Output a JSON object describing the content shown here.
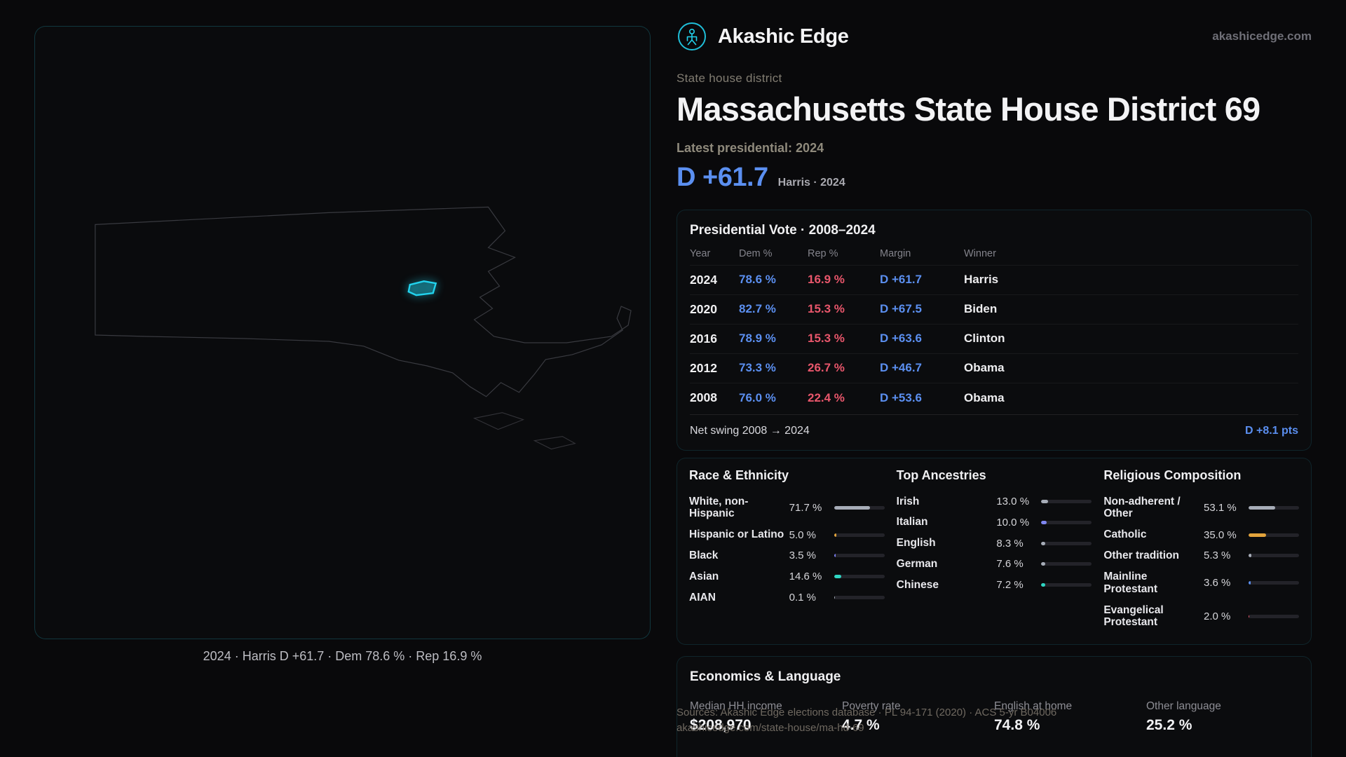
{
  "brand": {
    "name": "Akashic Edge",
    "domain": "akashicedge.com"
  },
  "palette": {
    "dem_blue": "#5b8ff0",
    "rep_red": "#e8566b",
    "accent_cyan": "#22d3ee",
    "bar_gray": "#a7adb8",
    "bar_orange": "#e3a43c",
    "bar_indigo": "#7b7ff2",
    "bar_teal": "#2fd6c3"
  },
  "page": {
    "kicker": "State house district",
    "title": "Massachusetts State House District 69",
    "latest_label": "Latest presidential: 2024",
    "headline_margin": "D +61.7",
    "headline_detail": "Harris · 2024"
  },
  "map": {
    "caption": "2024 · Harris D +61.7 · Dem 78.6 % · Rep 16.9 %"
  },
  "presidential": {
    "title": "Presidential Vote · 2008–2024",
    "columns": [
      "Year",
      "Dem %",
      "Rep %",
      "Margin",
      "Winner"
    ],
    "rows": [
      {
        "year": "2024",
        "dem": "78.6 %",
        "rep": "16.9 %",
        "margin": "D +61.7",
        "winner": "Harris"
      },
      {
        "year": "2020",
        "dem": "82.7 %",
        "rep": "15.3 %",
        "margin": "D +67.5",
        "winner": "Biden"
      },
      {
        "year": "2016",
        "dem": "78.9 %",
        "rep": "15.3 %",
        "margin": "D +63.6",
        "winner": "Clinton"
      },
      {
        "year": "2012",
        "dem": "73.3 %",
        "rep": "26.7 %",
        "margin": "D +46.7",
        "winner": "Obama"
      },
      {
        "year": "2008",
        "dem": "76.0 %",
        "rep": "22.4 %",
        "margin": "D +53.6",
        "winner": "Obama"
      }
    ],
    "net_swing_label": "Net swing 2008 → 2024",
    "net_swing_value": "D +8.1 pts"
  },
  "demographics": {
    "race": {
      "title": "Race & Ethnicity",
      "rows": [
        {
          "label": "White, non-Hispanic",
          "value": "71.7 %",
          "pct": 71.7,
          "color": "#a7adb8"
        },
        {
          "label": "Hispanic or Latino",
          "value": "5.0 %",
          "pct": 5.0,
          "color": "#e3a43c"
        },
        {
          "label": "Black",
          "value": "3.5 %",
          "pct": 3.5,
          "color": "#7b7ff2"
        },
        {
          "label": "Asian",
          "value": "14.6 %",
          "pct": 14.6,
          "color": "#2fd6c3"
        },
        {
          "label": "AIAN",
          "value": "0.1 %",
          "pct": 0.1,
          "color": "#a7adb8"
        }
      ]
    },
    "ancestries": {
      "title": "Top Ancestries",
      "rows": [
        {
          "label": "Irish",
          "value": "13.0 %",
          "pct": 13.0,
          "color": "#a7adb8"
        },
        {
          "label": "Italian",
          "value": "10.0 %",
          "pct": 10.0,
          "color": "#7f86f0"
        },
        {
          "label": "English",
          "value": "8.3 %",
          "pct": 8.3,
          "color": "#a7adb8"
        },
        {
          "label": "German",
          "value": "7.6 %",
          "pct": 7.6,
          "color": "#a7adb8"
        },
        {
          "label": "Chinese",
          "value": "7.2 %",
          "pct": 7.2,
          "color": "#2fd6c3"
        }
      ]
    },
    "religion": {
      "title": "Religious Composition",
      "rows": [
        {
          "label": "Non-adherent / Other",
          "value": "53.1 %",
          "pct": 53.1,
          "color": "#a7adb8"
        },
        {
          "label": "Catholic",
          "value": "35.0 %",
          "pct": 35.0,
          "color": "#e3a43c"
        },
        {
          "label": "Other tradition",
          "value": "5.3 %",
          "pct": 5.3,
          "color": "#a7adb8"
        },
        {
          "label": "Mainline Protestant",
          "value": "3.6 %",
          "pct": 3.6,
          "color": "#5b8ff0"
        },
        {
          "label": "Evangelical Protestant",
          "value": "2.0 %",
          "pct": 2.0,
          "color": "#e8566b"
        }
      ]
    }
  },
  "economics": {
    "title": "Economics & Language",
    "stats": [
      {
        "label": "Median HH income",
        "value": "$208,970"
      },
      {
        "label": "Poverty rate",
        "value": "4.7 %"
      },
      {
        "label": "English at home",
        "value": "74.8 %"
      },
      {
        "label": "Other language",
        "value": "25.2 %"
      }
    ]
  },
  "footer": {
    "sources": "Sources: Akashic Edge elections database · PL 94-171 (2020) · ACS 5-yr B04006",
    "permalink": "akashicedge.com/state-house/ma-hd-69"
  }
}
